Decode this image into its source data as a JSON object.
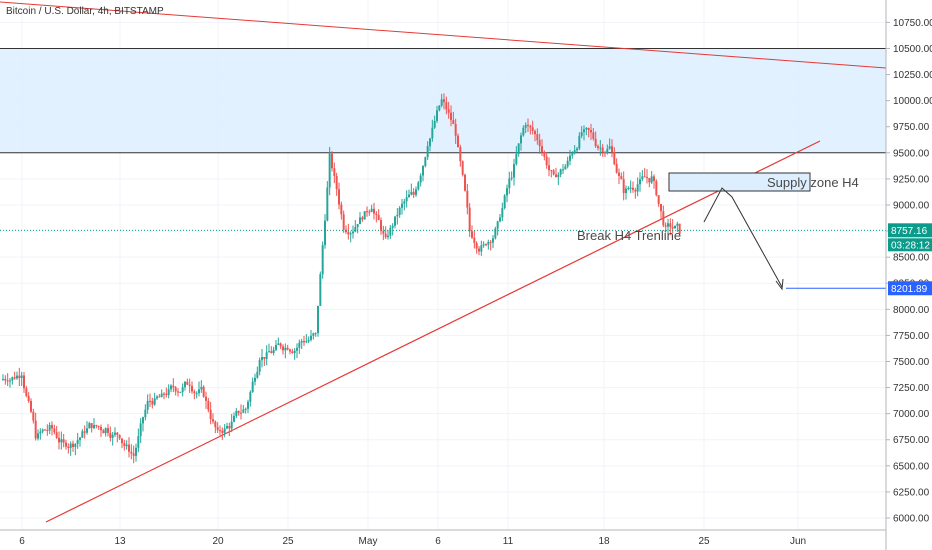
{
  "title": "Bitcoin / U.S. Dollar, 4h, BITSTAMP",
  "chart_data": {
    "type": "candlestick",
    "y_ticks": [
      "10750.00",
      "10500.00",
      "10250.00",
      "10000.00",
      "9750.00",
      "9500.00",
      "9250.00",
      "9000.00",
      "8750.00",
      "8500.00",
      "8250.00",
      "8000.00",
      "7750.00",
      "7500.00",
      "7250.00",
      "7000.00",
      "6750.00",
      "6500.00",
      "6250.00",
      "6000.00"
    ],
    "x_ticks": [
      "6",
      "13",
      "20",
      "25",
      "May",
      "6",
      "11",
      "18",
      "25",
      "Jun"
    ],
    "ylim": [
      5950,
      10980
    ],
    "series": [
      {
        "daily_closes": [
          6700,
          6900,
          7450,
          7300,
          7350,
          7400,
          6800,
          6850,
          6700,
          6750,
          6900,
          6850,
          6800,
          6600,
          7100,
          7150,
          7250,
          7300,
          7200,
          6800,
          6900,
          7050,
          7550,
          7600,
          7650,
          7700,
          7750,
          9450,
          8800,
          8850,
          9000,
          8650,
          8950,
          9100,
          9600,
          10000,
          9700,
          8750,
          8600,
          8800,
          9300,
          9800,
          9600,
          9250,
          9400,
          9700,
          9600,
          9550,
          9150,
          9200,
          9250,
          8750,
          8760
        ]
      }
    ],
    "current_price": "8757.16",
    "countdown": "03:28:12",
    "target_price": "8201.89",
    "supply_zone_range": [
      9500,
      10500
    ],
    "annotations": [
      "Supply zone H4",
      "Break H4 Trenline"
    ]
  },
  "colors": {
    "up": "#26a69a",
    "down": "#ef5350",
    "zone_fill": "#ddeeff",
    "trend_line": "#e53935",
    "current_price_tag": "#0b9b8a",
    "target_tag": "#2962ff"
  }
}
